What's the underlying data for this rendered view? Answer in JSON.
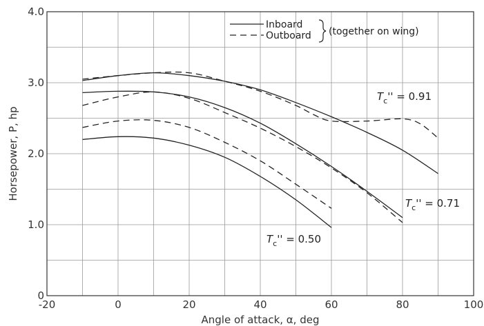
{
  "chart_data": {
    "type": "line",
    "xlabel": "Angle of attack, α, deg",
    "ylabel": "Horsepower, P, hp",
    "xlim": [
      -20,
      100
    ],
    "ylim": [
      0,
      4.0
    ],
    "xticks": [
      -20,
      0,
      20,
      40,
      60,
      80,
      100
    ],
    "yticks": [
      0,
      1.0,
      2.0,
      3.0,
      4.0
    ],
    "xtick_labels": [
      "-20",
      "0",
      "20",
      "40",
      "60",
      "80",
      "100"
    ],
    "ytick_labels": [
      "0",
      "1.0",
      "2.0",
      "3.0",
      "4.0"
    ],
    "grid": true,
    "legend": {
      "placement": "top-right",
      "entries": [
        {
          "label": "Inboard",
          "style": "solid"
        },
        {
          "label": "Outboard",
          "style": "dashed"
        }
      ],
      "note": "(together on wing)"
    },
    "annotations": [
      {
        "prefix": "T",
        "sub": "c",
        "suffix": "'' = 0.91"
      },
      {
        "prefix": "T",
        "sub": "c",
        "suffix": "'' = 0.71"
      },
      {
        "prefix": "T",
        "sub": "c",
        "suffix": "'' = 0.50"
      }
    ],
    "series": [
      {
        "style": "solid",
        "x": [
          -10,
          0,
          10,
          20,
          30,
          40,
          50,
          60,
          70,
          80,
          90
        ],
        "y": [
          3.03,
          3.1,
          3.14,
          3.1,
          3.02,
          2.9,
          2.72,
          2.52,
          2.3,
          2.05,
          1.72
        ]
      },
      {
        "style": "dashed",
        "x": [
          -10,
          0,
          10,
          20,
          30,
          40,
          50,
          55,
          60,
          70,
          80,
          85,
          90
        ],
        "y": [
          3.05,
          3.1,
          3.14,
          3.14,
          3.02,
          2.88,
          2.68,
          2.55,
          2.46,
          2.46,
          2.49,
          2.42,
          2.22
        ]
      },
      {
        "style": "solid",
        "x": [
          -10,
          0,
          10,
          20,
          30,
          40,
          50,
          60,
          70,
          80
        ],
        "y": [
          2.86,
          2.88,
          2.87,
          2.8,
          2.65,
          2.43,
          2.14,
          1.82,
          1.47,
          1.1
        ]
      },
      {
        "style": "dashed",
        "x": [
          -10,
          0,
          10,
          20,
          30,
          40,
          50,
          60,
          70,
          80
        ],
        "y": [
          2.68,
          2.8,
          2.87,
          2.78,
          2.58,
          2.36,
          2.1,
          1.8,
          1.45,
          1.03
        ]
      },
      {
        "style": "solid",
        "x": [
          -10,
          0,
          10,
          20,
          30,
          40,
          50,
          60
        ],
        "y": [
          2.2,
          2.24,
          2.22,
          2.12,
          1.95,
          1.68,
          1.35,
          0.96
        ]
      },
      {
        "style": "dashed",
        "x": [
          -10,
          0,
          10,
          20,
          30,
          40,
          50,
          60
        ],
        "y": [
          2.37,
          2.46,
          2.47,
          2.37,
          2.16,
          1.9,
          1.57,
          1.23
        ]
      }
    ]
  }
}
